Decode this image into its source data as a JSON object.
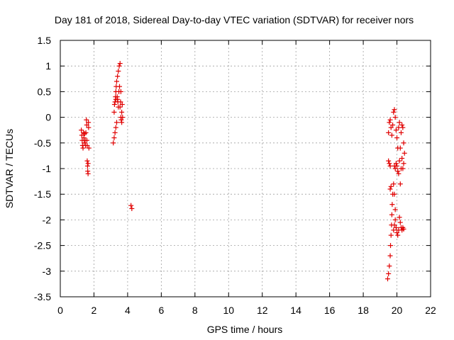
{
  "chart_data": {
    "type": "scatter",
    "title": "Day 181 of 2018, Sidereal Day-to-day VTEC variation (SDTVAR) for receiver nors",
    "xlabel": "GPS time / hours",
    "ylabel": "SDTVAR / TECUs",
    "xlim": [
      0,
      22
    ],
    "ylim": [
      -3.5,
      1.5
    ],
    "xticks": [
      0,
      2,
      4,
      6,
      8,
      10,
      12,
      14,
      16,
      18,
      20,
      22
    ],
    "yticks": [
      1.5,
      1,
      0.5,
      0,
      -0.5,
      -1,
      -1.5,
      -2,
      -2.5,
      -3,
      -3.5
    ],
    "xtick_labels": [
      "0",
      "2",
      "4",
      "6",
      "8",
      "10",
      "12",
      "14",
      "16",
      "18",
      "20",
      "22"
    ],
    "ytick_labels": [
      "1.5",
      "1",
      "0.5",
      "0",
      "-0.5",
      "-1",
      "-1.5",
      "-2",
      "-2.5",
      "-3",
      "-3.5"
    ],
    "grid": true,
    "marker": "+",
    "color": "#e00000",
    "series": [
      {
        "name": "SDTVAR",
        "points": [
          [
            1.25,
            -0.25
          ],
          [
            1.28,
            -0.35
          ],
          [
            1.3,
            -0.45
          ],
          [
            1.32,
            -0.55
          ],
          [
            1.35,
            -0.6
          ],
          [
            1.38,
            -0.3
          ],
          [
            1.4,
            -0.4
          ],
          [
            1.42,
            -0.5
          ],
          [
            1.45,
            -0.32
          ],
          [
            1.48,
            -0.45
          ],
          [
            1.5,
            -0.55
          ],
          [
            1.52,
            -0.3
          ],
          [
            1.55,
            -0.05
          ],
          [
            1.57,
            -0.15
          ],
          [
            1.58,
            -0.45
          ],
          [
            1.6,
            -0.55
          ],
          [
            1.6,
            -0.85
          ],
          [
            1.62,
            -0.95
          ],
          [
            1.63,
            -1.05
          ],
          [
            1.65,
            -1.1
          ],
          [
            1.65,
            -0.9
          ],
          [
            1.67,
            -0.1
          ],
          [
            1.68,
            -0.2
          ],
          [
            1.7,
            -0.6
          ],
          [
            3.15,
            -0.5
          ],
          [
            3.2,
            -0.4
          ],
          [
            3.25,
            -0.3
          ],
          [
            3.3,
            -0.2
          ],
          [
            3.35,
            -0.1
          ],
          [
            3.2,
            0.1
          ],
          [
            3.22,
            0.25
          ],
          [
            3.25,
            0.3
          ],
          [
            3.28,
            0.4
          ],
          [
            3.3,
            0.5
          ],
          [
            3.32,
            0.6
          ],
          [
            3.35,
            0.7
          ],
          [
            3.38,
            0.4
          ],
          [
            3.4,
            0.8
          ],
          [
            3.42,
            0.3
          ],
          [
            3.45,
            0.9
          ],
          [
            3.48,
            0.5
          ],
          [
            3.5,
            1.0
          ],
          [
            3.52,
            0.6
          ],
          [
            3.55,
            1.05
          ],
          [
            3.55,
            0.2
          ],
          [
            3.58,
            0.3
          ],
          [
            3.6,
            0.5
          ],
          [
            3.6,
            0.0
          ],
          [
            3.62,
            -0.05
          ],
          [
            3.65,
            0.1
          ],
          [
            3.65,
            -0.1
          ],
          [
            3.68,
            0.25
          ],
          [
            3.7,
            0.0
          ],
          [
            3.4,
            0.35
          ],
          [
            3.45,
            0.2
          ],
          [
            3.3,
            0.35
          ],
          [
            4.2,
            -1.72
          ],
          [
            4.25,
            -1.78
          ],
          [
            19.45,
            -3.15
          ],
          [
            19.5,
            -3.05
          ],
          [
            19.55,
            -2.9
          ],
          [
            19.6,
            -2.7
          ],
          [
            19.62,
            -2.5
          ],
          [
            19.65,
            -2.3
          ],
          [
            19.68,
            -2.1
          ],
          [
            19.7,
            -1.9
          ],
          [
            19.72,
            -1.7
          ],
          [
            19.75,
            -1.5
          ],
          [
            19.6,
            -1.4
          ],
          [
            19.65,
            -1.35
          ],
          [
            19.5,
            -0.85
          ],
          [
            19.55,
            -0.9
          ],
          [
            19.6,
            -0.95
          ],
          [
            19.5,
            -0.3
          ],
          [
            19.55,
            -0.1
          ],
          [
            19.6,
            -0.05
          ],
          [
            19.65,
            -0.2
          ],
          [
            19.7,
            -0.35
          ],
          [
            19.75,
            -0.15
          ],
          [
            19.8,
            0.1
          ],
          [
            19.85,
            0.15
          ],
          [
            19.9,
            0.0
          ],
          [
            19.95,
            -0.25
          ],
          [
            19.85,
            -0.95
          ],
          [
            19.9,
            -1.0
          ],
          [
            19.95,
            -0.9
          ],
          [
            20.0,
            -0.95
          ],
          [
            20.05,
            -1.05
          ],
          [
            20.1,
            -1.1
          ],
          [
            20.15,
            -0.85
          ],
          [
            20.2,
            -0.6
          ],
          [
            20.25,
            -0.3
          ],
          [
            20.3,
            -0.15
          ],
          [
            20.35,
            -0.2
          ],
          [
            20.4,
            -0.5
          ],
          [
            20.45,
            -0.7
          ],
          [
            20.4,
            -0.9
          ],
          [
            20.35,
            -1.0
          ],
          [
            20.0,
            -0.4
          ],
          [
            20.05,
            -0.6
          ],
          [
            20.1,
            -0.2
          ],
          [
            20.15,
            -0.1
          ],
          [
            19.8,
            -2.2
          ],
          [
            19.85,
            -2.1
          ],
          [
            19.9,
            -2.0
          ],
          [
            19.95,
            -2.15
          ],
          [
            20.0,
            -2.25
          ],
          [
            20.05,
            -2.3
          ],
          [
            20.1,
            -2.2
          ],
          [
            20.15,
            -1.95
          ],
          [
            20.2,
            -2.05
          ],
          [
            20.25,
            -2.15
          ],
          [
            20.3,
            -2.2
          ],
          [
            20.35,
            -2.15
          ],
          [
            20.4,
            -2.18
          ],
          [
            20.2,
            -1.3
          ],
          [
            20.25,
            -1.0
          ],
          [
            20.3,
            -0.8
          ],
          [
            19.8,
            -1.3
          ],
          [
            19.85,
            -1.5
          ],
          [
            19.9,
            -1.8
          ]
        ]
      }
    ]
  }
}
